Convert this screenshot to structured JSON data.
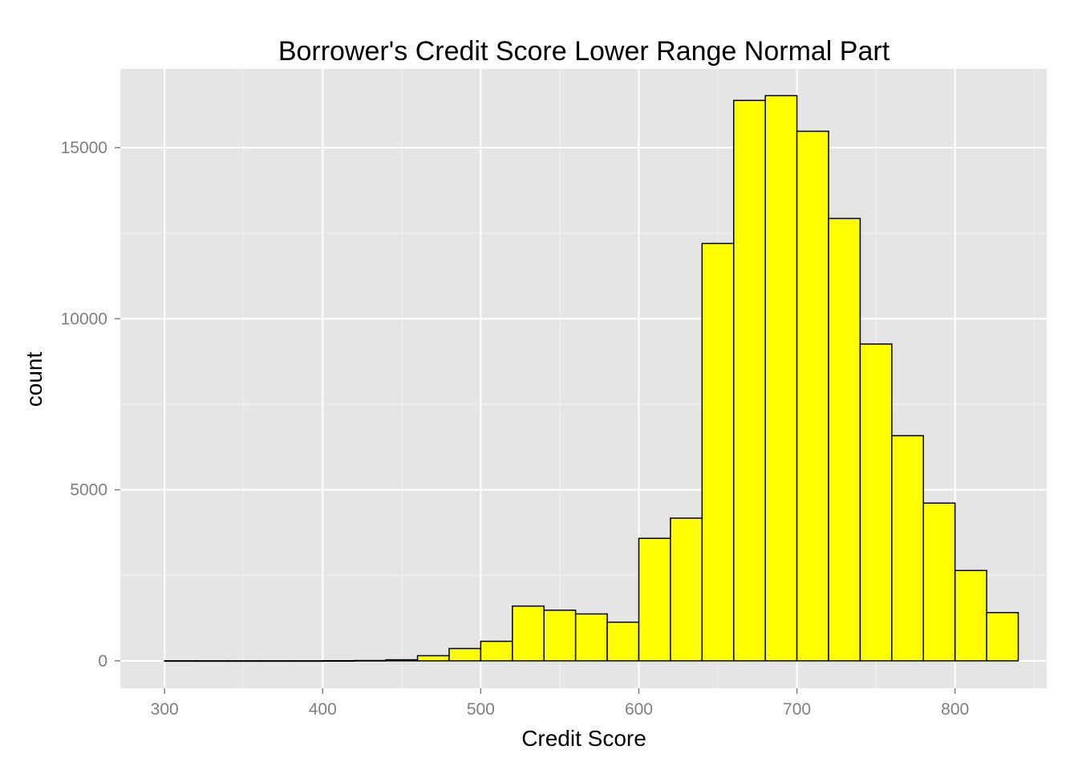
{
  "chart_data": {
    "type": "bar",
    "title": "Borrower's Credit Score Lower Range Normal Part",
    "xlabel": "Credit Score",
    "ylabel": "count",
    "xlim": [
      272,
      858
    ],
    "ylim": [
      -800,
      17300
    ],
    "x_ticks": [
      300,
      400,
      500,
      600,
      700,
      800
    ],
    "y_ticks": [
      0,
      5000,
      10000,
      15000
    ],
    "bin_width": 20,
    "bin_starts": [
      300,
      320,
      340,
      360,
      380,
      400,
      420,
      440,
      460,
      480,
      500,
      520,
      540,
      560,
      580,
      600,
      620,
      640,
      660,
      680,
      700,
      720,
      740,
      760,
      780,
      800,
      820
    ],
    "values": [
      1,
      0,
      0,
      0,
      0,
      3,
      8,
      30,
      150,
      360,
      570,
      1600,
      1480,
      1370,
      1130,
      3580,
      4170,
      12200,
      16380,
      16520,
      15480,
      12930,
      9260,
      6580,
      4610,
      2640,
      1410
    ],
    "panel_background": "#e5e5e5",
    "bar_fill": "#ffff00",
    "bar_outline": "#000000",
    "grid": true,
    "legend": "none"
  }
}
